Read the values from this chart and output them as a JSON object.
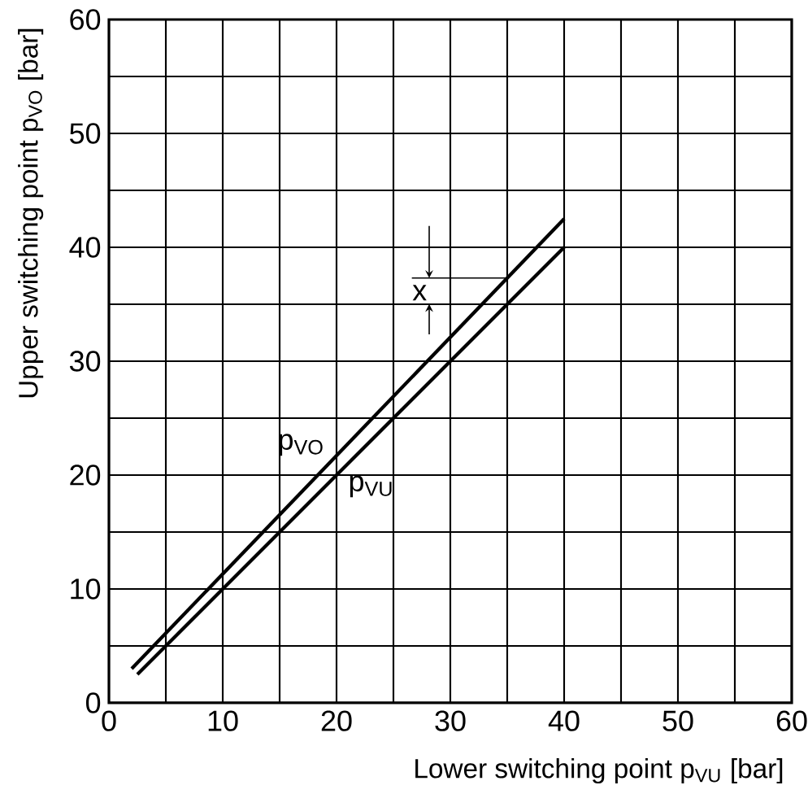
{
  "chart_data": {
    "type": "line",
    "xlabel": "Lower switching point p$_{VU}$ [bar]",
    "ylabel": "Upper switching point p$_{VO}$ [bar]",
    "series": [
      {
        "name": "p$_{VO}$",
        "x": [
          2,
          40
        ],
        "values": [
          3,
          42.5
        ],
        "color": "#000000"
      },
      {
        "name": "p$_{VU}$",
        "x": [
          2.5,
          40
        ],
        "values": [
          2.5,
          40
        ],
        "color": "#000000"
      }
    ],
    "annotations": [
      {
        "text": "x",
        "x": 35,
        "y": 37.3
      }
    ],
    "xlim": [
      0,
      60
    ],
    "ylim": [
      0,
      60
    ],
    "xticks": [
      0,
      {
        "value": 5,
        "label": null
      },
      10,
      {
        "value": 15,
        "label": null
      },
      20,
      {
        "value": 25,
        "label": null
      },
      30,
      {
        "value": 35,
        "label": null
      },
      40,
      {
        "value": 45,
        "label": null
      },
      50,
      {
        "value": 55,
        "label": null
      },
      60
    ],
    "yticks": [
      0,
      {
        "value": 5,
        "label": null
      },
      10,
      {
        "value": 15,
        "label": null
      },
      20,
      {
        "value": 25,
        "label": null
      },
      30,
      {
        "value": 35,
        "label": null
      },
      40,
      {
        "value": 45,
        "label": null
      },
      50,
      {
        "value": 55,
        "label": null
      },
      60
    ],
    "grid": true,
    "marker": "none",
    "line_style": "solid",
    "legend": false
  }
}
